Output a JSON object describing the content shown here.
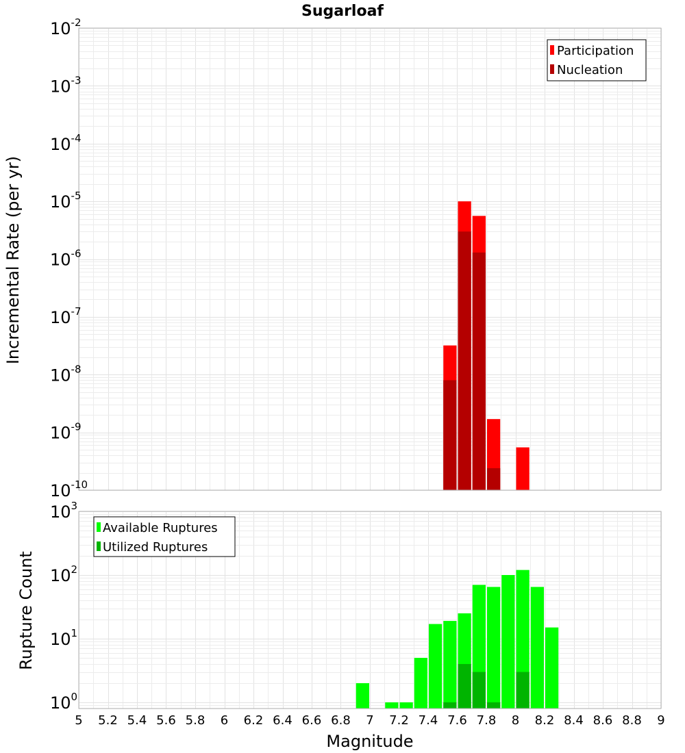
{
  "chart_data": [
    {
      "type": "bar",
      "title": "Sugarloaf",
      "xlabel": "Magnitude",
      "ylabel": "Incremental Rate (per yr)",
      "yscale": "log",
      "xlim": [
        5,
        9
      ],
      "ylim": [
        1e-10,
        0.01
      ],
      "bin_width": 0.1,
      "legend": {
        "placement": "top-right"
      },
      "series": [
        {
          "name": "Participation",
          "color": "#ff0000",
          "x": [
            7.55,
            7.65,
            7.75,
            7.85,
            8.05
          ],
          "values": [
            3.2e-08,
            1e-05,
            5.6e-06,
            1.7e-09,
            5.5e-10
          ]
        },
        {
          "name": "Nucleation",
          "color": "#b40000",
          "x": [
            7.55,
            7.65,
            7.75,
            7.85
          ],
          "values": [
            8e-09,
            3e-06,
            1.3e-06,
            2.4e-10
          ]
        }
      ]
    },
    {
      "type": "bar",
      "xlabel": "Magnitude",
      "ylabel": "Rupture Count",
      "yscale": "log",
      "xlim": [
        5,
        9
      ],
      "ylim": [
        0.8,
        1000
      ],
      "bin_width": 0.1,
      "legend": {
        "placement": "top-left"
      },
      "series": [
        {
          "name": "Available Ruptures",
          "color": "#00ff00",
          "x": [
            6.95,
            7.15,
            7.25,
            7.35,
            7.45,
            7.55,
            7.65,
            7.75,
            7.85,
            7.95,
            8.05,
            8.15,
            8.25
          ],
          "values": [
            2,
            1,
            1,
            5,
            17,
            19,
            25,
            70,
            65,
            100,
            120,
            65,
            15
          ]
        },
        {
          "name": "Utilized Ruptures",
          "color": "#00b400",
          "x": [
            7.55,
            7.65,
            7.75,
            7.85,
            8.05
          ],
          "values": [
            1,
            4,
            3,
            1,
            3
          ]
        }
      ]
    }
  ],
  "axis": {
    "x_ticks": [
      "5",
      "5.2",
      "5.4",
      "5.6",
      "5.8",
      "6",
      "6.2",
      "6.4",
      "6.6",
      "6.8",
      "7",
      "7.2",
      "7.4",
      "7.6",
      "7.8",
      "8",
      "8.2",
      "8.4",
      "8.6",
      "8.8",
      "9"
    ],
    "top_y_exponents": [
      -10,
      -9,
      -8,
      -7,
      -6,
      -5,
      -4,
      -3,
      -2
    ],
    "bottom_y_exponents": [
      0,
      1,
      2,
      3
    ],
    "log_base": "10"
  }
}
